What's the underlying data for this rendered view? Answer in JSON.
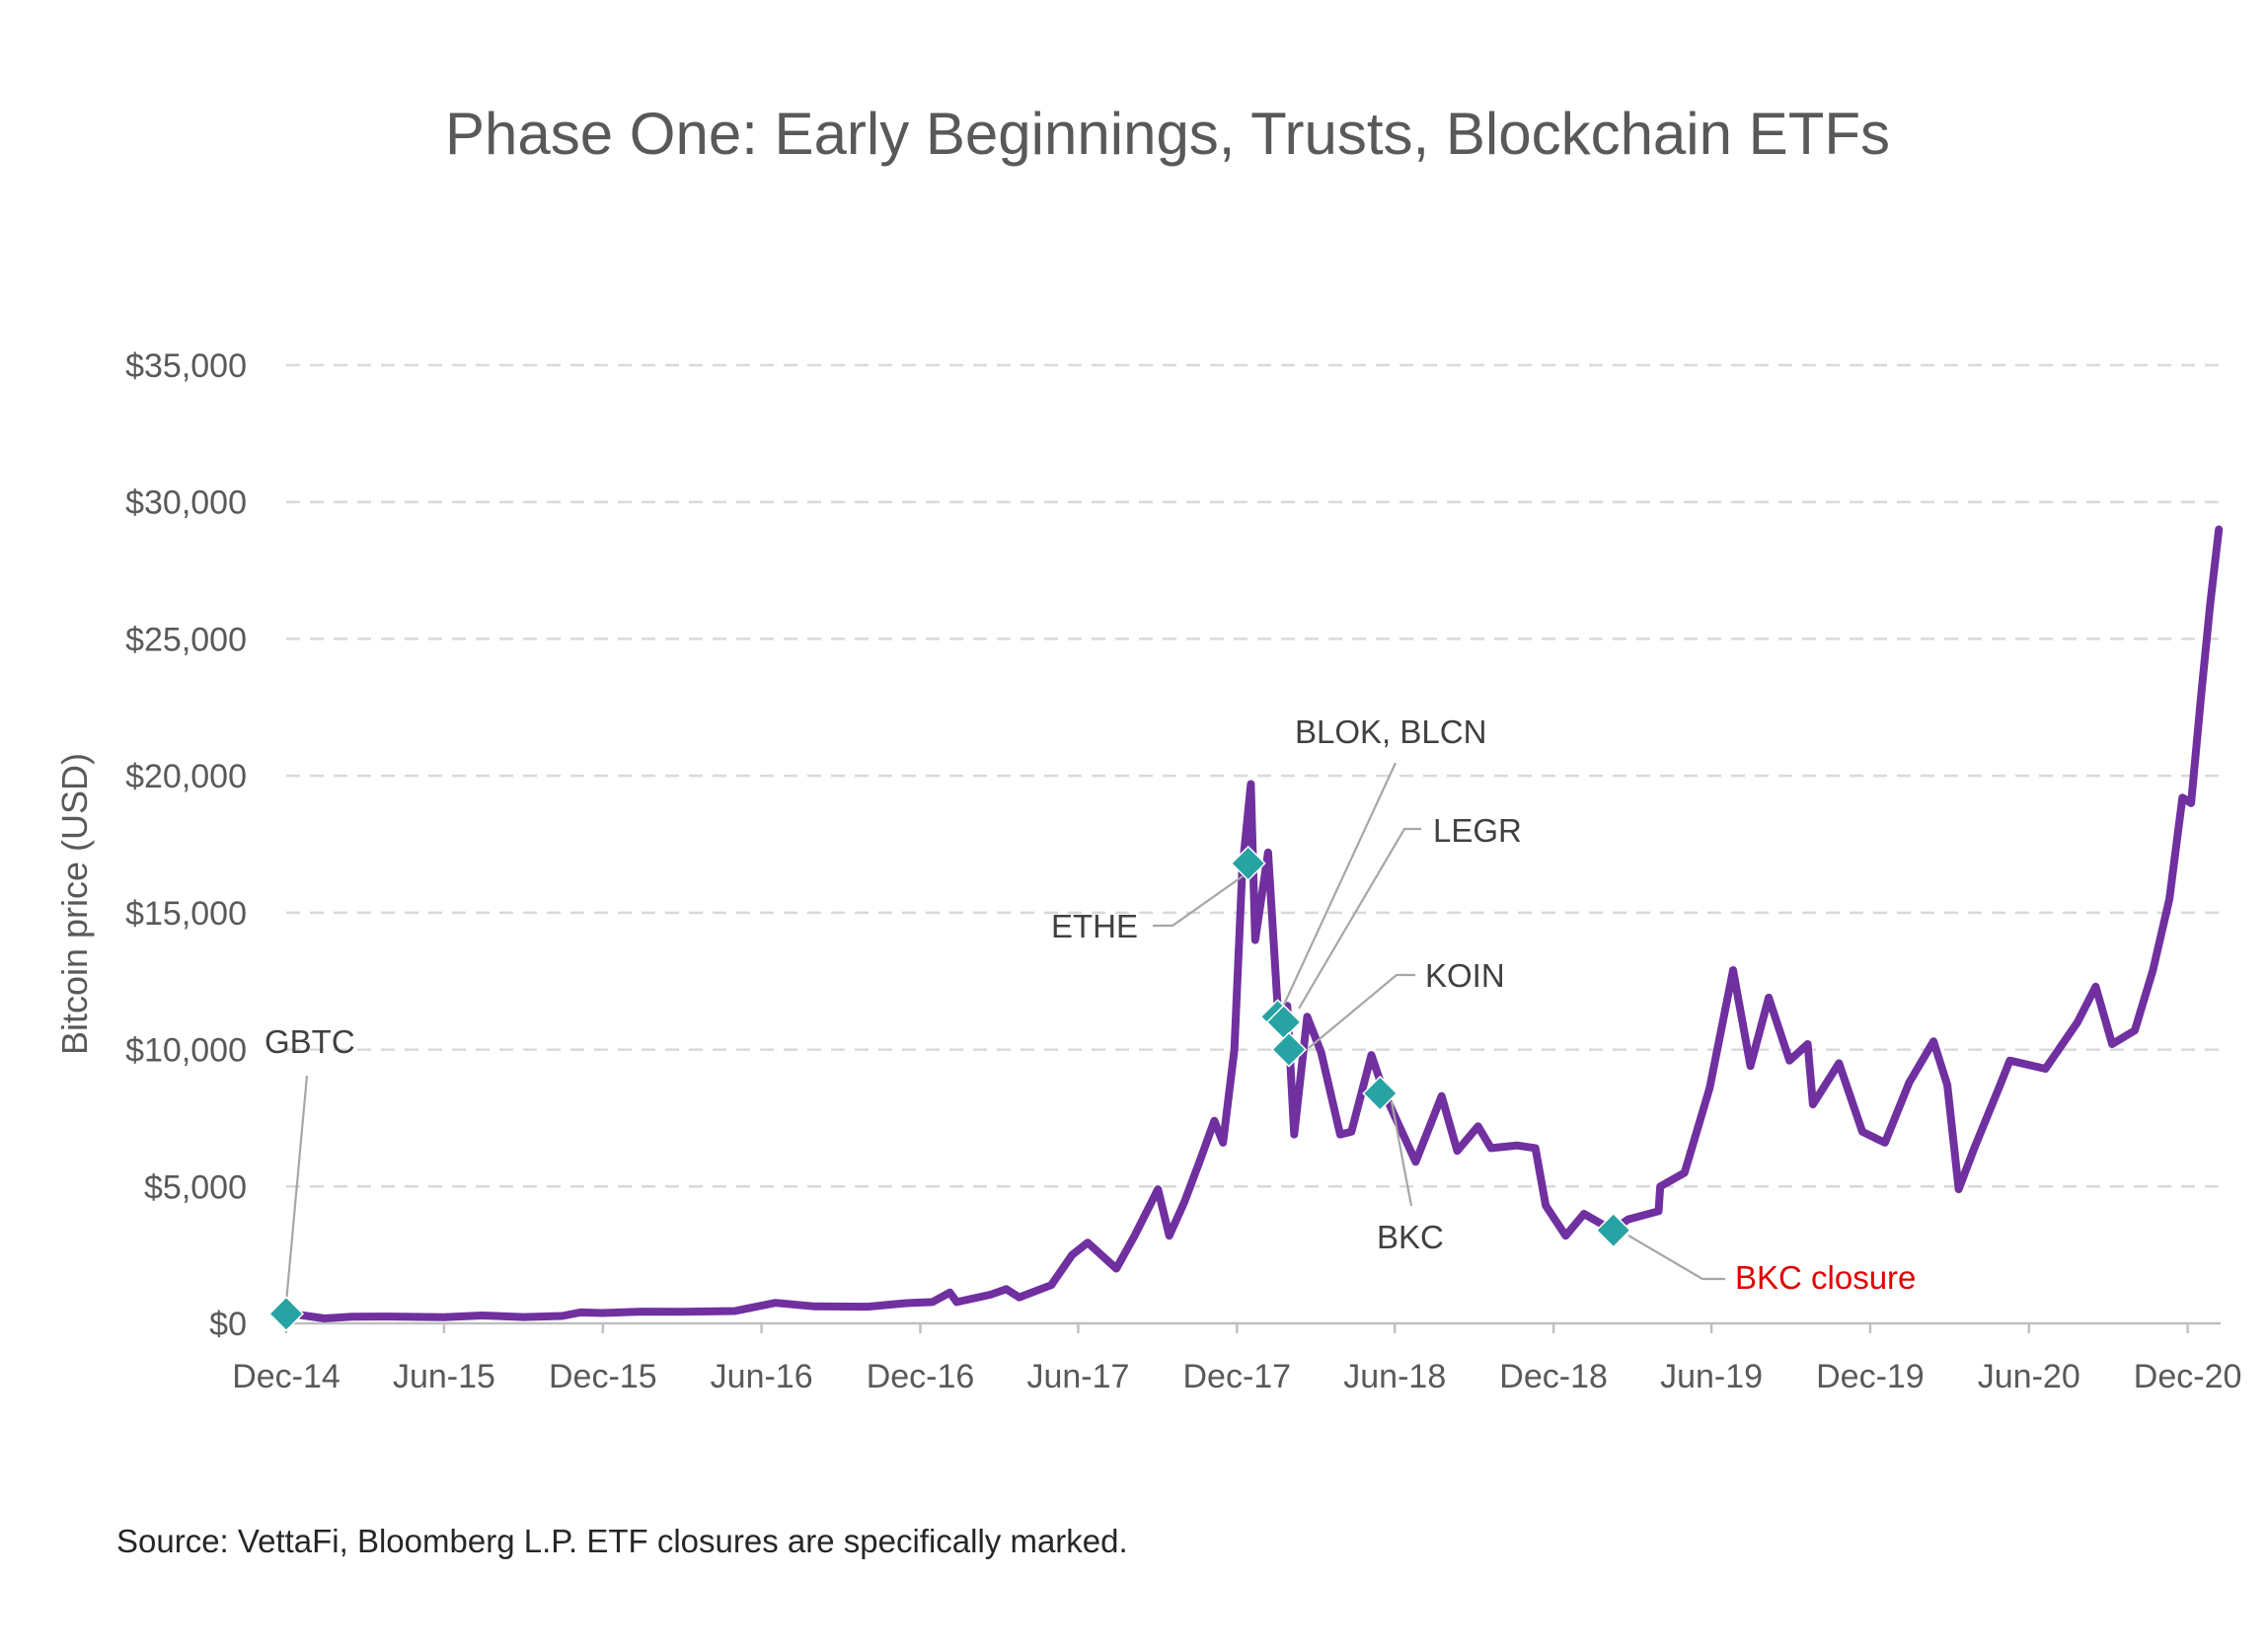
{
  "chart_data": {
    "type": "line",
    "title": "Phase One: Early Beginnings, Trusts, Blockchain ETFs",
    "ylabel": "Bitcoin price (USD)",
    "xlabel": "",
    "ylim": [
      0,
      35000
    ],
    "yticks": [
      0,
      5000,
      10000,
      15000,
      20000,
      25000,
      30000,
      35000
    ],
    "ytick_labels": [
      "$0",
      "$5,000",
      "$10,000",
      "$15,000",
      "$20,000",
      "$25,000",
      "$30,000",
      "$35,000"
    ],
    "xlim": [
      "2014-12-01",
      "2021-01-08"
    ],
    "xticks": [
      "2014-12-01",
      "2015-06-01",
      "2015-12-01",
      "2016-06-01",
      "2016-12-01",
      "2017-06-01",
      "2017-12-01",
      "2018-06-01",
      "2018-12-01",
      "2019-06-01",
      "2019-12-01",
      "2020-06-01",
      "2020-12-01"
    ],
    "xtick_labels": [
      "Dec-14",
      "Jun-15",
      "Dec-15",
      "Jun-16",
      "Dec-16",
      "Jun-17",
      "Dec-17",
      "Jun-18",
      "Dec-18",
      "Jun-19",
      "Dec-19",
      "Jun-20",
      "Dec-20"
    ],
    "grid": "horizontal-dashed",
    "series": [
      {
        "name": "",
        "color": "#7030A0",
        "points": [
          [
            "2014-12-01",
            380
          ],
          [
            "2015-01-14",
            180
          ],
          [
            "2015-02-15",
            240
          ],
          [
            "2015-04-01",
            250
          ],
          [
            "2015-06-01",
            225
          ],
          [
            "2015-07-15",
            290
          ],
          [
            "2015-09-01",
            230
          ],
          [
            "2015-10-15",
            270
          ],
          [
            "2015-11-05",
            400
          ],
          [
            "2015-12-01",
            380
          ],
          [
            "2016-01-15",
            430
          ],
          [
            "2016-03-01",
            420
          ],
          [
            "2016-05-01",
            450
          ],
          [
            "2016-06-17",
            750
          ],
          [
            "2016-08-01",
            620
          ],
          [
            "2016-10-01",
            610
          ],
          [
            "2016-11-15",
            740
          ],
          [
            "2016-12-15",
            780
          ],
          [
            "2017-01-04",
            1130
          ],
          [
            "2017-01-12",
            780
          ],
          [
            "2017-02-20",
            1050
          ],
          [
            "2017-03-10",
            1250
          ],
          [
            "2017-03-25",
            950
          ],
          [
            "2017-05-01",
            1400
          ],
          [
            "2017-05-25",
            2500
          ],
          [
            "2017-06-12",
            2950
          ],
          [
            "2017-07-15",
            2000
          ],
          [
            "2017-08-05",
            3200
          ],
          [
            "2017-09-01",
            4900
          ],
          [
            "2017-09-14",
            3200
          ],
          [
            "2017-10-01",
            4400
          ],
          [
            "2017-10-20",
            6000
          ],
          [
            "2017-11-05",
            7400
          ],
          [
            "2017-11-15",
            6600
          ],
          [
            "2017-11-28",
            10000
          ],
          [
            "2017-12-07",
            16500
          ],
          [
            "2017-12-17",
            19700
          ],
          [
            "2017-12-22",
            14000
          ],
          [
            "2018-01-06",
            17200
          ],
          [
            "2018-01-18",
            11000
          ],
          [
            "2018-01-28",
            11600
          ],
          [
            "2018-02-05",
            6900
          ],
          [
            "2018-02-20",
            11200
          ],
          [
            "2018-03-08",
            9900
          ],
          [
            "2018-03-30",
            6900
          ],
          [
            "2018-04-12",
            7000
          ],
          [
            "2018-05-05",
            9800
          ],
          [
            "2018-05-20",
            8400
          ],
          [
            "2018-06-25",
            5900
          ],
          [
            "2018-07-25",
            8300
          ],
          [
            "2018-08-12",
            6300
          ],
          [
            "2018-09-05",
            7200
          ],
          [
            "2018-09-20",
            6400
          ],
          [
            "2018-10-20",
            6500
          ],
          [
            "2018-11-10",
            6400
          ],
          [
            "2018-11-22",
            4300
          ],
          [
            "2018-12-15",
            3200
          ],
          [
            "2019-01-05",
            4000
          ],
          [
            "2019-02-07",
            3400
          ],
          [
            "2019-02-25",
            3800
          ],
          [
            "2019-04-01",
            4100
          ],
          [
            "2019-04-03",
            5000
          ],
          [
            "2019-05-01",
            5500
          ],
          [
            "2019-05-30",
            8600
          ],
          [
            "2019-06-26",
            12900
          ],
          [
            "2019-07-16",
            9400
          ],
          [
            "2019-08-06",
            11900
          ],
          [
            "2019-08-30",
            9600
          ],
          [
            "2019-09-20",
            10200
          ],
          [
            "2019-09-26",
            8000
          ],
          [
            "2019-10-26",
            9500
          ],
          [
            "2019-11-22",
            7000
          ],
          [
            "2019-12-18",
            6600
          ],
          [
            "2020-01-15",
            8800
          ],
          [
            "2020-02-12",
            10300
          ],
          [
            "2020-02-28",
            8700
          ],
          [
            "2020-03-12",
            4900
          ],
          [
            "2020-03-30",
            6400
          ],
          [
            "2020-04-30",
            8800
          ],
          [
            "2020-05-10",
            9600
          ],
          [
            "2020-06-20",
            9300
          ],
          [
            "2020-07-27",
            11000
          ],
          [
            "2020-08-17",
            12300
          ],
          [
            "2020-09-05",
            10200
          ],
          [
            "2020-10-01",
            10700
          ],
          [
            "2020-10-22",
            12900
          ],
          [
            "2020-11-10",
            15500
          ],
          [
            "2020-11-25",
            19200
          ],
          [
            "2020-12-05",
            19000
          ],
          [
            "2020-12-17",
            23100
          ],
          [
            "2020-12-27",
            26300
          ],
          [
            "2021-01-06",
            29000
          ]
        ]
      }
    ],
    "markers": [
      {
        "label": "GBTC",
        "date": "2014-12-01",
        "value": 350
      },
      {
        "label": "ETHE",
        "date": "2017-12-14",
        "value": 16800
      },
      {
        "label": "BLOK, BLCN",
        "date": "2018-01-17",
        "value": 11200
      },
      {
        "label": "LEGR",
        "date": "2018-01-24",
        "value": 11000
      },
      {
        "label": "KOIN",
        "date": "2018-01-30",
        "value": 10000
      },
      {
        "label": "BKC",
        "date": "2018-05-15",
        "value": 8400
      },
      {
        "label": "BKC closure",
        "date": "2019-02-08",
        "value": 3400
      }
    ],
    "colors": {
      "line": "#7030A0",
      "marker": "#27A3A3",
      "closure_label": "#E00000"
    }
  },
  "source_note": "Source: VettaFi, Bloomberg L.P. ETF closures are specifically marked."
}
